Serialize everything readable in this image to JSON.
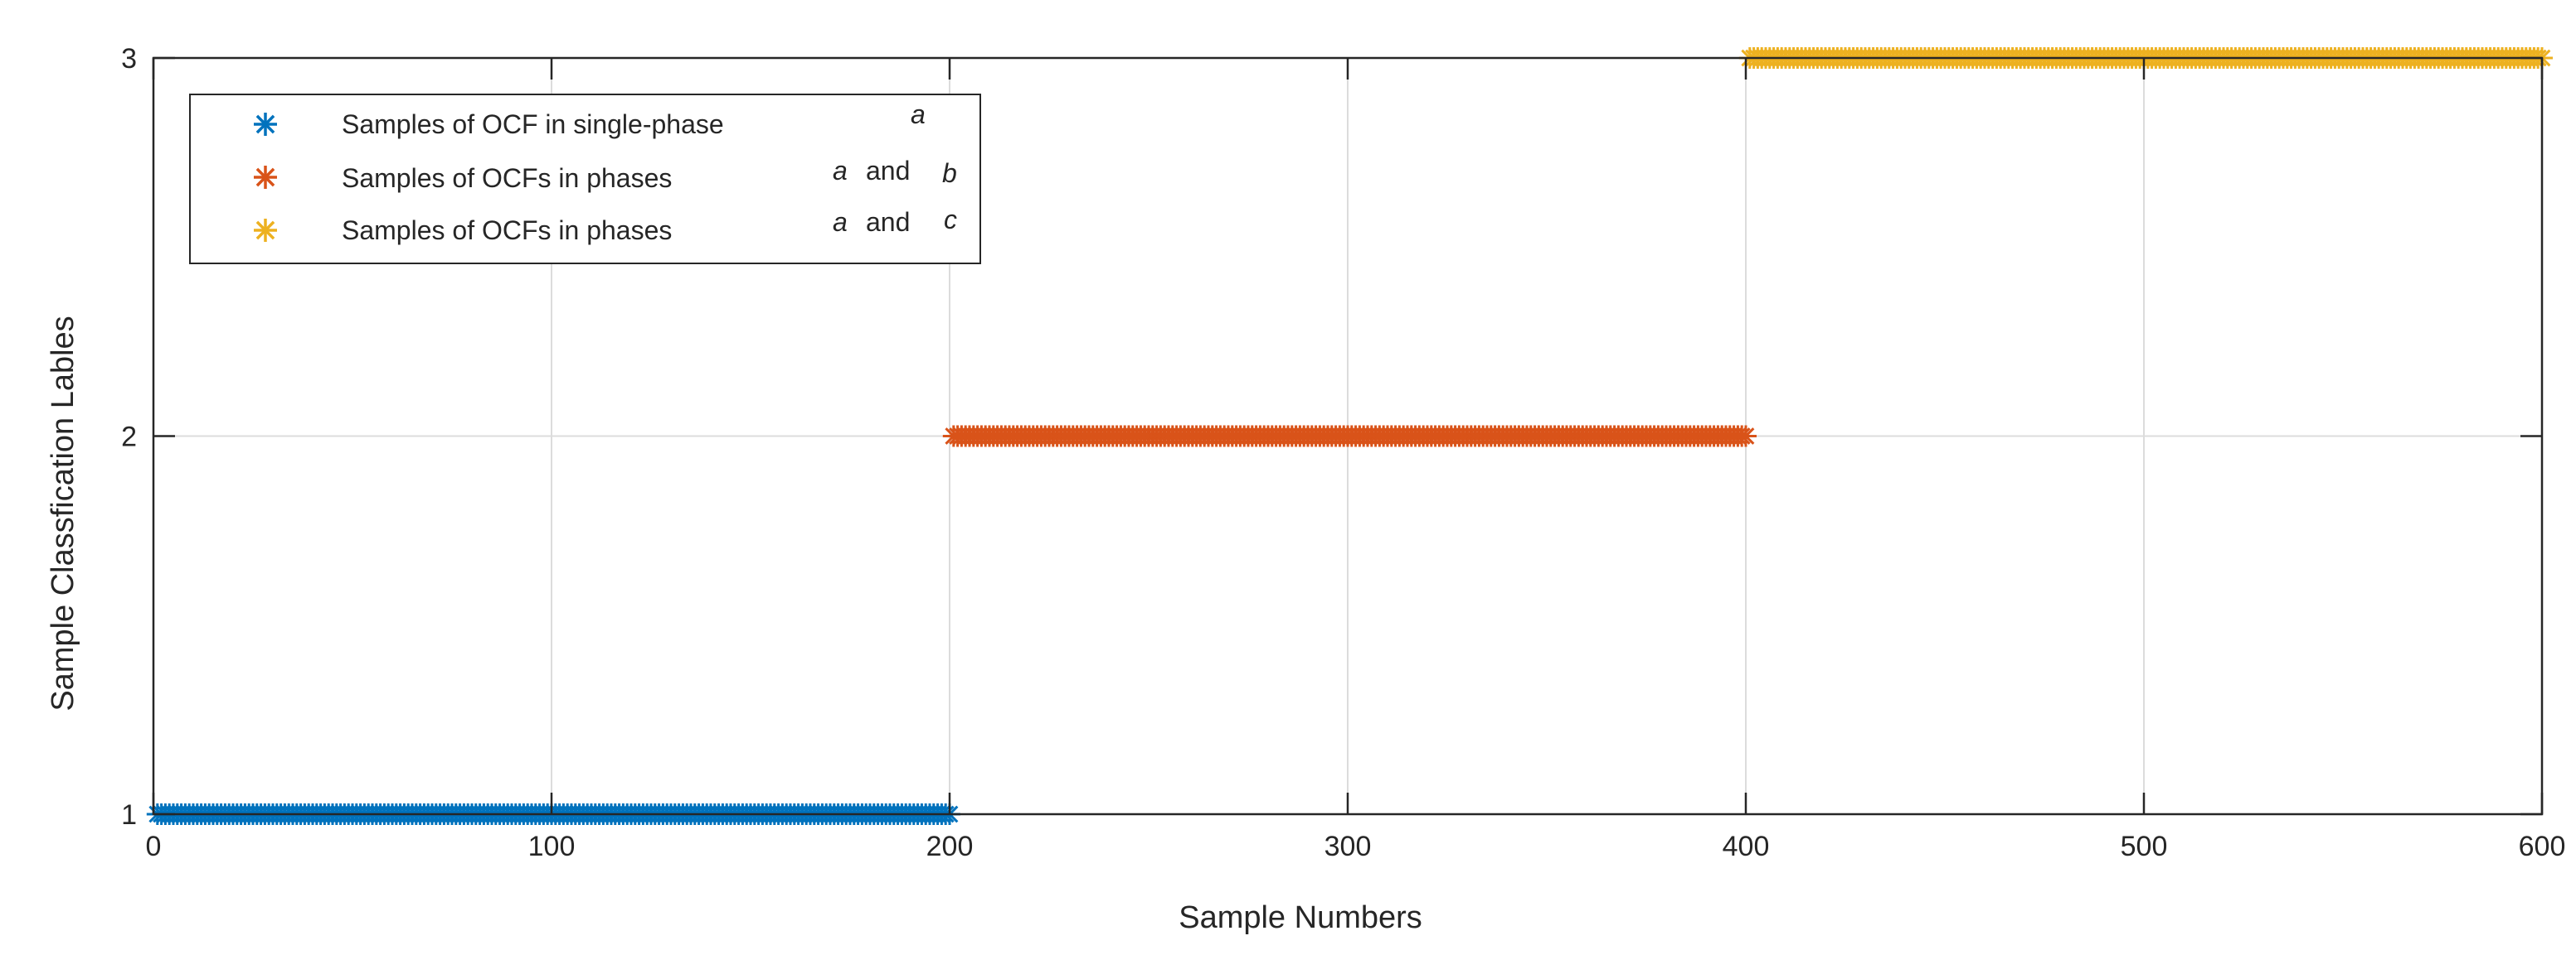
{
  "chart_data": {
    "type": "scatter",
    "xlabel": "Sample Numbers",
    "ylabel": "Sample Classfication Lables",
    "xlim": [
      0,
      600
    ],
    "ylim": [
      1,
      3
    ],
    "xticks": [
      "0",
      "100",
      "200",
      "300",
      "400",
      "500",
      "600"
    ],
    "yticks": [
      "1",
      "2",
      "3"
    ],
    "grid": true,
    "marker": "asterisk",
    "legend_position": "top-left",
    "series": [
      {
        "name": "Samples of OCF in single-phase",
        "name_parts": [
          "Samples of OCF in single-phase",
          "a"
        ],
        "color": "#0072BD",
        "x_range": [
          1,
          200
        ],
        "y": 1
      },
      {
        "name": "Samples of OCFs in phases a and b",
        "name_parts": [
          "Samples of OCFs in phases",
          "a",
          "and",
          "b"
        ],
        "color": "#D95319",
        "x_range": [
          201,
          400
        ],
        "y": 2
      },
      {
        "name": "Samples of OCFs in phases a and c",
        "name_parts": [
          "Samples of OCFs in phases",
          "a",
          "and",
          "c"
        ],
        "color": "#EDB120",
        "x_range": [
          401,
          600
        ],
        "y": 3
      }
    ]
  }
}
